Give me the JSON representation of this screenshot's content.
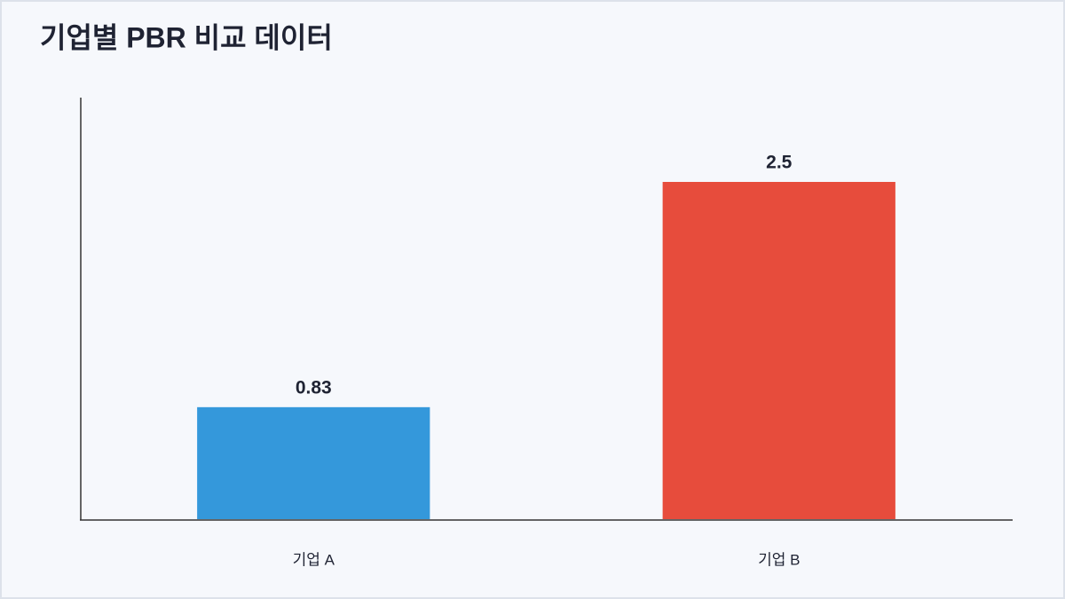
{
  "chart_data": {
    "type": "bar",
    "title": "기업별 PBR 비교 데이터",
    "categories": [
      "기업 A",
      "기업 B"
    ],
    "values": [
      0.83,
      2.5
    ],
    "colors": [
      "#3498db",
      "#e74c3c"
    ],
    "ylim": [
      0,
      3.125
    ]
  }
}
